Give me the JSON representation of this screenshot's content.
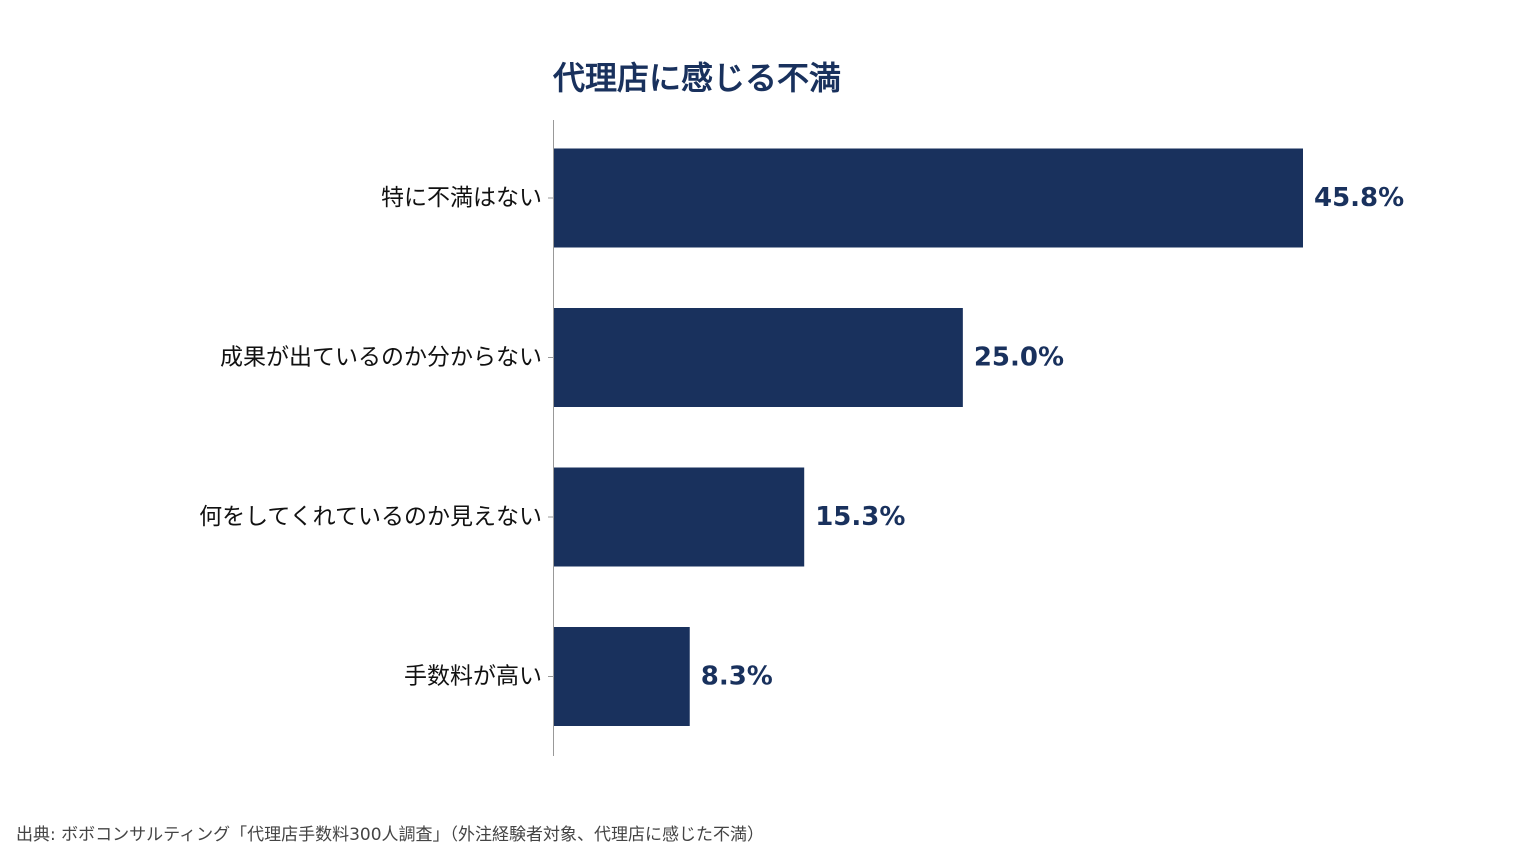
{
  "colors": {
    "bar": "#19315D",
    "title": "#19315D",
    "value_label": "#19315D",
    "axis": "#999999"
  },
  "chart_data": {
    "type": "bar",
    "orientation": "horizontal",
    "title": "代理店に感じる不満",
    "categories": [
      "特に不満はない",
      "成果が出ているのか分からない",
      "何をしてくれているのか見えない",
      "手数料が高い"
    ],
    "values": [
      45.8,
      25.0,
      15.3,
      8.3
    ],
    "value_labels": [
      "45.8%",
      "25.0%",
      "15.3%",
      "8.3%"
    ],
    "unit": "%",
    "xlim": [
      0,
      50
    ],
    "grid": false,
    "legend": "none"
  },
  "source": "出典: ボボコンサルティング「代理店手数料300人調査」（外注経験者対象、代理店に感じた不満）"
}
